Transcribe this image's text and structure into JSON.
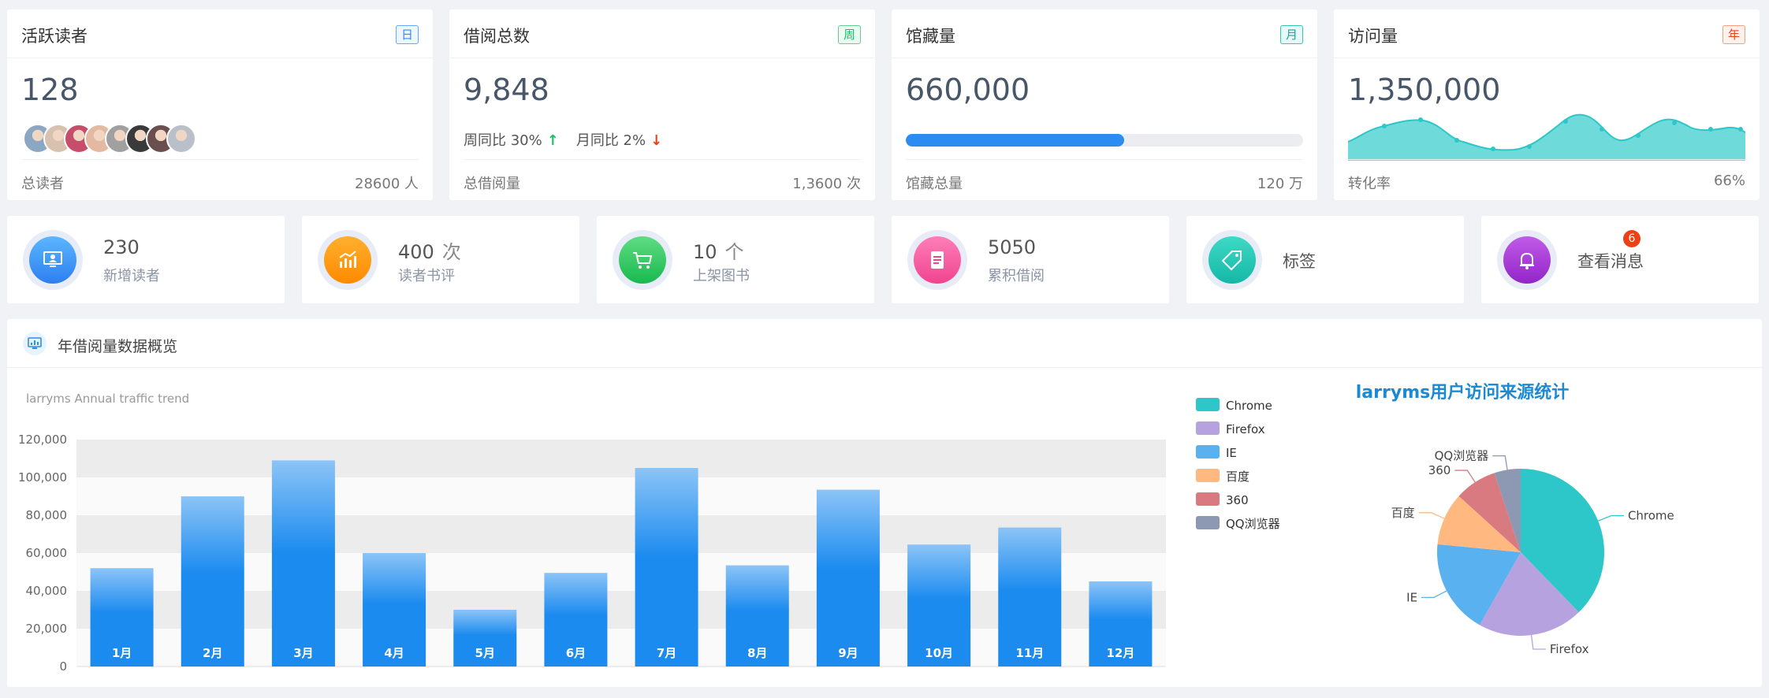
{
  "stats": [
    {
      "title": "活跃读者",
      "badge": "日",
      "value": "128",
      "foot_label": "总读者",
      "foot_value": "28600 人"
    },
    {
      "title": "借阅总数",
      "badge": "周",
      "value": "9,848",
      "wow_label": "周同比 30%",
      "wow_arrow": "↑",
      "mom_label": "月同比 2%",
      "mom_arrow": "↓",
      "foot_label": "总借阅量",
      "foot_value": "1,3600 次"
    },
    {
      "title": "馆藏量",
      "badge": "月",
      "value": "660,000",
      "progress": 0.55,
      "foot_label": "馆藏总量",
      "foot_value": "120 万"
    },
    {
      "title": "访问量",
      "badge": "年",
      "value": "1,350,000",
      "foot_label": "转化率",
      "foot_value": "66%"
    }
  ],
  "badge_colors": [
    {
      "border": "#5cadff",
      "bg": "#eef7ff",
      "text": "#2d8cf0"
    },
    {
      "border": "#5fd08f",
      "bg": "#edfaf2",
      "text": "#19be6b"
    },
    {
      "border": "#32c5b5",
      "bg": "#e6faf7",
      "text": "#19a79a"
    },
    {
      "border": "#ff9c7a",
      "bg": "#fff2ec",
      "text": "#ed4014"
    }
  ],
  "avatar_colors": [
    "#8ba7c4",
    "#d9c1b0",
    "#c74e6a",
    "#e4b9a2",
    "#a0a0a0",
    "#3a3a3a",
    "#6b4f4f",
    "#b9c0c9"
  ],
  "quick": [
    {
      "num": "230",
      "unit": "",
      "label": "新增读者",
      "icon": "monitor-user-icon",
      "color": "#2d8cf0"
    },
    {
      "num": "400",
      "unit": "次",
      "label": "读者书评",
      "icon": "chart-growth-icon",
      "color": "#ff9900"
    },
    {
      "num": "10",
      "unit": "个",
      "label": "上架图书",
      "icon": "cart-icon",
      "color": "#19be6b"
    },
    {
      "num": "5050",
      "unit": "",
      "label": "累积借阅",
      "icon": "document-icon",
      "color": "#f5519b"
    },
    {
      "single": "标签",
      "icon": "tag-icon",
      "color": "#19c4b0"
    },
    {
      "single": "查看消息",
      "icon": "bell-icon",
      "color": "#a337d4",
      "dot": "6"
    }
  ],
  "panel": {
    "title": "年借阅量数据概览"
  },
  "bar_chart": {
    "type": "bar",
    "subtitle": "larryms Annual traffic trend",
    "categories": [
      "1月",
      "2月",
      "3月",
      "4月",
      "5月",
      "6月",
      "7月",
      "8月",
      "9月",
      "10月",
      "11月",
      "12月"
    ],
    "values": [
      52000,
      90000,
      109000,
      60000,
      30000,
      49500,
      105000,
      53500,
      93500,
      64500,
      73500,
      45000
    ],
    "ylim": [
      0,
      120000
    ],
    "yticks": [
      "0",
      "20,000",
      "40,000",
      "60,000",
      "80,000",
      "100,000",
      "120,000"
    ]
  },
  "chart_data": {
    "type": "pie",
    "title": "larryms用户访问来源统计",
    "legend_position": "top-left",
    "slices": [
      {
        "label": "Chrome",
        "value": 37,
        "color": "#2ec7c9"
      },
      {
        "label": "Firefox",
        "value": 20,
        "color": "#b6a2de"
      },
      {
        "label": "IE",
        "value": 18,
        "color": "#5ab1ef"
      },
      {
        "label": "百度",
        "value": 10,
        "color": "#ffb980"
      },
      {
        "label": "360",
        "value": 8,
        "color": "#d87a80"
      },
      {
        "label": "QQ浏览器",
        "value": 5,
        "color": "#8d98b3"
      }
    ]
  }
}
